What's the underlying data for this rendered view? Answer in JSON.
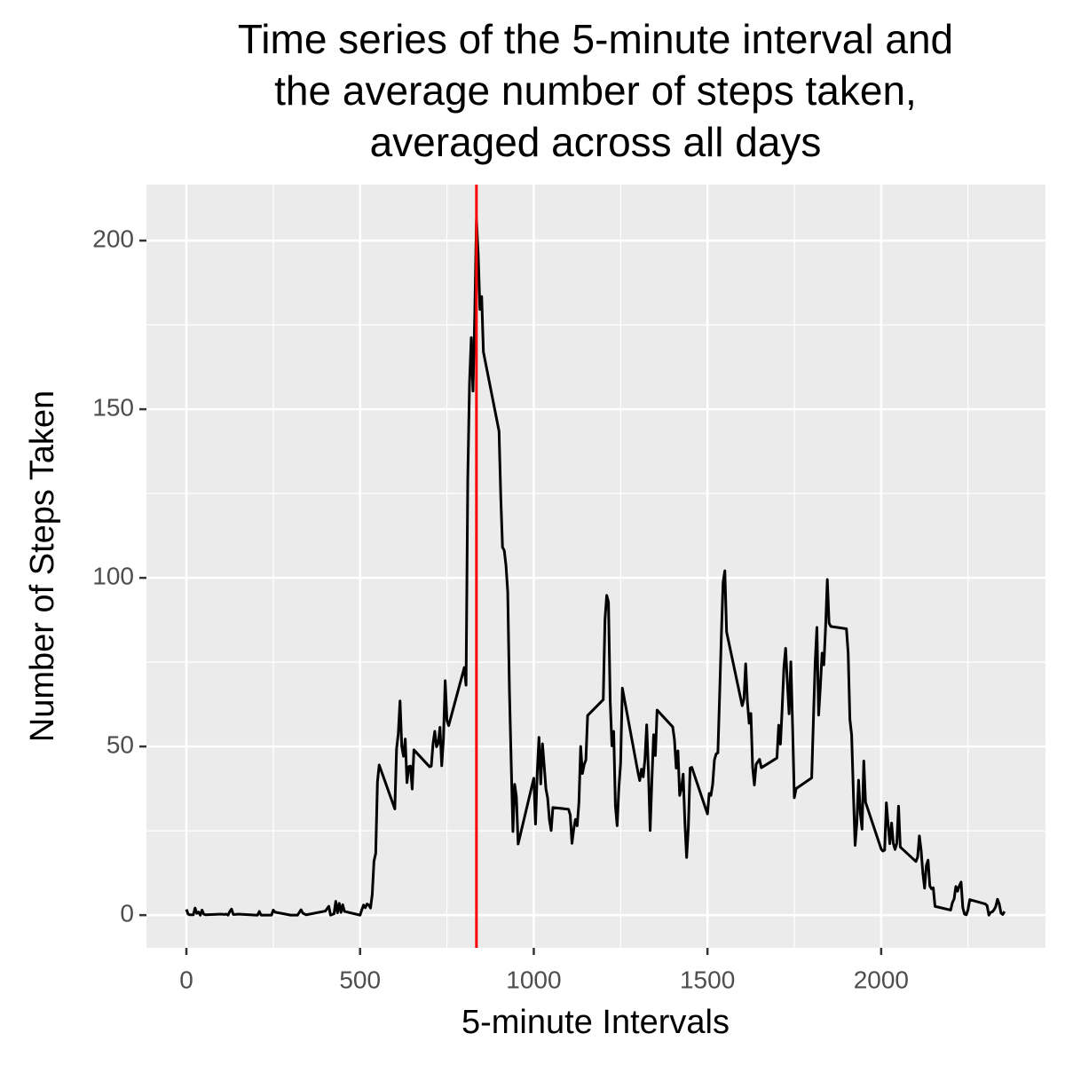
{
  "chart_data": {
    "type": "line",
    "title": [
      "Time series of the 5-minute interval and",
      "the average number of steps taken,",
      "averaged across all days"
    ],
    "xlabel": "5-minute Intervals",
    "ylabel": "Number of Steps Taken",
    "color": "#000000",
    "x": [
      0,
      5,
      10,
      20,
      25,
      30,
      35,
      40,
      45,
      50,
      55,
      100,
      110,
      115,
      120,
      125,
      130,
      135,
      140,
      150,
      200,
      205,
      210,
      215,
      230,
      245,
      250,
      255,
      300,
      320,
      330,
      335,
      345,
      400,
      410,
      415,
      425,
      430,
      435,
      440,
      445,
      450,
      455,
      500,
      505,
      510,
      515,
      520,
      525,
      530,
      535,
      540,
      545,
      550,
      555,
      600,
      605,
      610,
      615,
      620,
      625,
      630,
      635,
      640,
      645,
      650,
      655,
      700,
      705,
      710,
      715,
      720,
      725,
      730,
      735,
      740,
      745,
      750,
      755,
      800,
      805,
      810,
      815,
      820,
      825,
      830,
      835,
      840,
      845,
      850,
      855,
      900,
      905,
      910,
      915,
      920,
      925,
      930,
      935,
      940,
      945,
      950,
      955,
      1000,
      1005,
      1010,
      1015,
      1020,
      1025,
      1030,
      1035,
      1040,
      1045,
      1050,
      1055,
      1100,
      1105,
      1110,
      1115,
      1120,
      1125,
      1130,
      1135,
      1140,
      1145,
      1150,
      1155,
      1200,
      1205,
      1210,
      1215,
      1220,
      1225,
      1230,
      1235,
      1240,
      1245,
      1250,
      1255,
      1300,
      1305,
      1310,
      1315,
      1320,
      1325,
      1330,
      1335,
      1340,
      1345,
      1350,
      1355,
      1400,
      1405,
      1410,
      1415,
      1420,
      1425,
      1430,
      1435,
      1440,
      1445,
      1450,
      1455,
      1500,
      1505,
      1510,
      1515,
      1520,
      1525,
      1530,
      1535,
      1540,
      1545,
      1550,
      1555,
      1600,
      1605,
      1610,
      1615,
      1620,
      1625,
      1630,
      1635,
      1640,
      1645,
      1650,
      1655,
      1700,
      1705,
      1710,
      1715,
      1720,
      1725,
      1730,
      1735,
      1740,
      1745,
      1750,
      1755,
      1800,
      1805,
      1810,
      1815,
      1820,
      1825,
      1830,
      1835,
      1840,
      1845,
      1850,
      1855,
      1900,
      1905,
      1910,
      1915,
      1920,
      1925,
      1930,
      1935,
      1940,
      1945,
      1950,
      1955,
      2000,
      2005,
      2010,
      2015,
      2020,
      2025,
      2030,
      2035,
      2040,
      2045,
      2050,
      2055,
      2100,
      2105,
      2110,
      2115,
      2120,
      2125,
      2130,
      2135,
      2140,
      2145,
      2150,
      2155,
      2200,
      2205,
      2210,
      2215,
      2220,
      2225,
      2230,
      2235,
      2240,
      2245,
      2250,
      2255,
      2300,
      2305,
      2310,
      2315,
      2320,
      2325,
      2330,
      2335,
      2340,
      2345,
      2350,
      2355
    ],
    "values": [
      1.7,
      0.3,
      0.1,
      0.1,
      2.1,
      0.5,
      0.9,
      0,
      1.5,
      0.3,
      0.1,
      0.3,
      0.2,
      0.3,
      0,
      1.1,
      1.8,
      0.2,
      0.2,
      0.3,
      0,
      0,
      1.1,
      0,
      0,
      0,
      1.5,
      0.9,
      0,
      0,
      1.6,
      0.6,
      0.1,
      1.2,
      2.6,
      0,
      0.4,
      4.1,
      0.7,
      3.5,
      0.8,
      3.1,
      1.1,
      0,
      1.6,
      3.0,
      2.2,
      3.3,
      3.0,
      2.1,
      6.1,
      16.0,
      18.3,
      39.5,
      44.5,
      31.5,
      49.3,
      53.8,
      63.5,
      50.0,
      47.1,
      52.2,
      39.3,
      44.0,
      44.2,
      37.4,
      49.0,
      44.0,
      44.2,
      50.8,
      54.5,
      49.9,
      51.0,
      55.7,
      44.3,
      52.3,
      69.5,
      57.8,
      56.2,
      73.4,
      68.2,
      129.4,
      157.5,
      171.2,
      155.4,
      177.3,
      206.2,
      195.9,
      179.6,
      183.4,
      167.0,
      143.5,
      124.0,
      109.1,
      108.1,
      103.7,
      95.9,
      66.2,
      45.2,
      24.8,
      38.8,
      35.0,
      21.1,
      40.6,
      27.0,
      42.4,
      52.7,
      38.9,
      50.8,
      44.3,
      37.4,
      34.7,
      28.3,
      25.1,
      31.9,
      31.4,
      29.7,
      21.3,
      25.5,
      28.4,
      26.5,
      33.4,
      50.0,
      42.0,
      44.6,
      46.0,
      59.2,
      63.9,
      87.7,
      94.8,
      92.8,
      63.4,
      50.2,
      54.5,
      32.4,
      26.5,
      37.7,
      45.1,
      67.3,
      42.3,
      39.9,
      43.3,
      41.0,
      46.2,
      56.4,
      42.8,
      25.1,
      40.0,
      53.5,
      47.3,
      60.8,
      55.8,
      52.0,
      43.6,
      48.7,
      35.5,
      37.5,
      41.8,
      27.5,
      17.1,
      26.1,
      43.6,
      43.8,
      30.0,
      36.1,
      35.5,
      38.8,
      46.0,
      47.8,
      48.1,
      65.3,
      82.9,
      98.7,
      102.1,
      84.0,
      62.1,
      64.1,
      74.5,
      63.2,
      56.9,
      59.8,
      43.9,
      38.6,
      44.7,
      45.5,
      46.2,
      43.7,
      46.6,
      56.3,
      50.7,
      61.2,
      73.4,
      79.1,
      68.9,
      59.7,
      75.1,
      56.5,
      34.8,
      37.5,
      40.7,
      58.0,
      74.7,
      85.3,
      59.3,
      67.8,
      77.7,
      74.2,
      85.3,
      99.5,
      86.6,
      85.6,
      84.9,
      77.8,
      58.0,
      53.4,
      36.3,
      20.7,
      27.4,
      40.0,
      30.2,
      25.5,
      45.7,
      33.5,
      19.6,
      19.0,
      19.3,
      33.3,
      26.8,
      21.2,
      27.3,
      21.3,
      19.5,
      21.3,
      32.3,
      20.2,
      15.9,
      17.2,
      23.5,
      19.2,
      12.5,
      8.0,
      14.7,
      16.3,
      8.7,
      7.8,
      8.1,
      2.6,
      1.5,
      3.7,
      4.8,
      8.5,
      7.1,
      8.7,
      9.8,
      2.2,
      0.3,
      0.1,
      1.6,
      4.6,
      3.3,
      2.8,
      0,
      0.8,
      1.0,
      1.6,
      2.6,
      4.7,
      3.3,
      0.6,
      0.2,
      1.1
    ],
    "vline": {
      "x": 835,
      "color": "#ff0000"
    },
    "xlim": [
      -115,
      2473
    ],
    "ylim": [
      -9.7,
      216.6
    ],
    "xticks": [
      0,
      500,
      1000,
      1500,
      2000
    ],
    "yticks": [
      0,
      50,
      100,
      150,
      200
    ],
    "x_minor_grid": [
      250,
      750,
      1250,
      1750,
      2250
    ],
    "y_minor_grid": [
      25,
      75,
      125,
      175
    ],
    "grid": true
  }
}
